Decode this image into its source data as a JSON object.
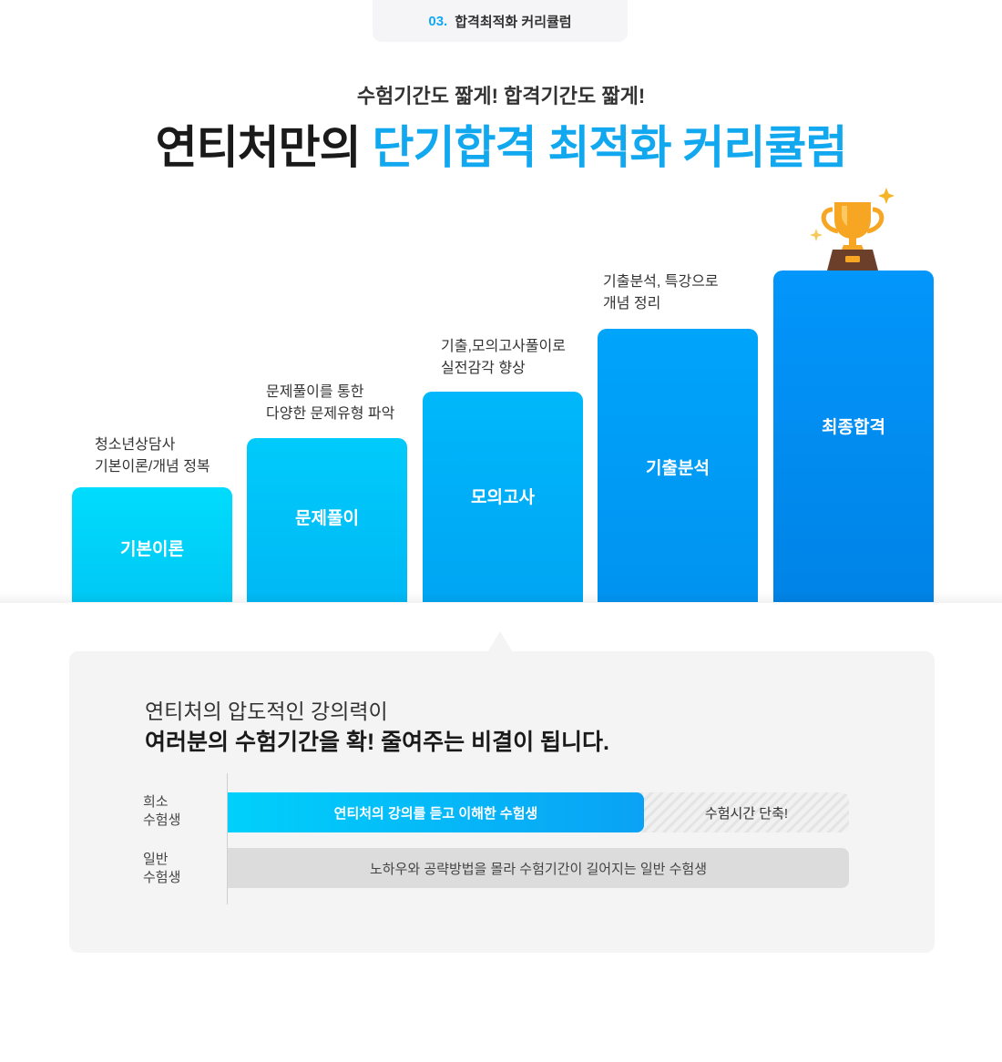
{
  "header": {
    "section_number": "03.",
    "section_title": "합격최적화 커리큘럼"
  },
  "hero": {
    "subtitle": "수험기간도 짧게! 합격기간도 짧게!",
    "title_plain": "연티처만의 ",
    "title_accent": "단기합격 최적화 커리큘럼"
  },
  "steps": [
    {
      "label": "기본이론",
      "desc_line1": "청소년상담사",
      "desc_line2": "기본이론/개념 정복"
    },
    {
      "label": "문제풀이",
      "desc_line1": "문제풀이를 통한",
      "desc_line2": "다양한 문제유형 파악"
    },
    {
      "label": "모의고사",
      "desc_line1": "기출,모의고사풀이로",
      "desc_line2": "실전감각 향상"
    },
    {
      "label": "기출분석",
      "desc_line1": "기출분석, 특강으로",
      "desc_line2": "개념 정리"
    },
    {
      "label": "최종합격"
    }
  ],
  "panel": {
    "line1": "연티처의 압도적인 강의력이",
    "line2": "여러분의 수험기간을 확! 줄여주는 비결이 됩니다.",
    "rows": [
      {
        "label_line1": "희소",
        "label_line2": "수험생",
        "bar_text": "연티처의 강의를 듣고 이해한 수험생",
        "rest_text": "수험시간 단축!",
        "fill_fraction": 0.67
      },
      {
        "label_line1": "일반",
        "label_line2": "수험생",
        "bar_text": "노하우와 공략방법을 몰라 수험기간이 길어지는 일반 수험생",
        "fill_fraction": 1.0
      }
    ]
  },
  "icons": [
    "trophy-icon",
    "sparkle-icon"
  ],
  "colors": {
    "accent": "#11a8f0",
    "panel_bg": "#f4f4f4",
    "trophy_gold": "#f6a623",
    "trophy_base": "#6b3f2a"
  }
}
